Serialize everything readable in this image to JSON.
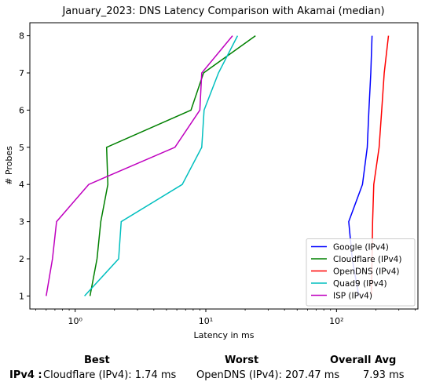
{
  "chart_data": {
    "type": "line",
    "title": "January_2023: DNS Latency Comparison with Akamai (median)",
    "xlabel": "Latency in ms",
    "ylabel": "# Probes",
    "xscale": "log",
    "xlim": [
      0.45,
      420
    ],
    "ylim": [
      0.65,
      8.35
    ],
    "xticks": [
      1,
      10,
      100
    ],
    "xtick_labels": [
      "10⁰",
      "10¹",
      "10²"
    ],
    "yticks": [
      1,
      2,
      3,
      4,
      5,
      6,
      7,
      8
    ],
    "ytick_labels": [
      "1",
      "2",
      "3",
      "4",
      "5",
      "6",
      "7",
      "8"
    ],
    "grid": false,
    "legend_position": "lower-right",
    "series": [
      {
        "name": "Google (IPv4)",
        "color": "#0000ff",
        "x": [
          148,
          132,
          124,
          158,
          172,
          177,
          183,
          187
        ],
        "y": [
          1,
          2,
          3,
          4,
          5,
          6,
          7,
          8
        ]
      },
      {
        "name": "Cloudflare (IPv4)",
        "color": "#008000",
        "x": [
          1.3,
          1.47,
          1.57,
          1.78,
          1.74,
          7.7,
          9.6,
          24
        ],
        "y": [
          1,
          2,
          3,
          4,
          5,
          6,
          7,
          8
        ]
      },
      {
        "name": "OpenDNS (IPv4)",
        "color": "#ff0000",
        "x": [
          185,
          187,
          189,
          193,
          212,
          222,
          232,
          250
        ],
        "y": [
          1,
          2,
          3,
          4,
          5,
          6,
          7,
          8
        ]
      },
      {
        "name": "Quad9 (IPv4)",
        "color": "#00bfbf",
        "x": [
          1.18,
          2.15,
          2.25,
          6.6,
          9.3,
          9.7,
          12.5,
          17.5
        ],
        "y": [
          1,
          2,
          3,
          4,
          5,
          6,
          7,
          8
        ]
      },
      {
        "name": "ISP (IPv4)",
        "color": "#bf00bf",
        "x": [
          0.6,
          0.67,
          0.72,
          1.27,
          5.8,
          9.0,
          9.3,
          16
        ],
        "y": [
          1,
          2,
          3,
          4,
          5,
          6,
          7,
          8
        ]
      }
    ]
  },
  "summary": {
    "best_header": "Best",
    "worst_header": "Worst",
    "avg_header": "Overall Avg",
    "row_label": "IPv4 :",
    "best": "Cloudflare (IPv4): 1.74 ms",
    "worst": "OpenDNS (IPv4): 207.47 ms",
    "avg": "7.93 ms"
  }
}
